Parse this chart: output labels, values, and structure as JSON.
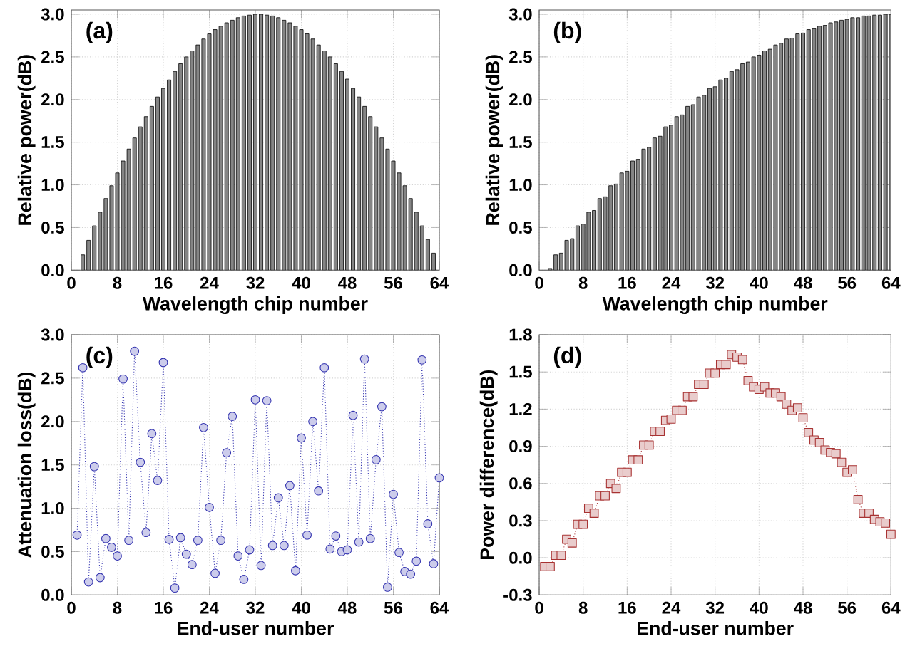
{
  "chart_data": [
    {
      "type": "bar",
      "annotations": [
        "(a)"
      ],
      "xlabel": "Wavelength chip number",
      "ylabel": "Relative power(dB)",
      "color": "#858585",
      "grid": true,
      "x": [
        2,
        3,
        4,
        5,
        6,
        7,
        8,
        9,
        10,
        11,
        12,
        13,
        14,
        15,
        16,
        17,
        18,
        19,
        20,
        21,
        22,
        23,
        24,
        25,
        26,
        27,
        28,
        29,
        30,
        31,
        32,
        33,
        34,
        35,
        36,
        37,
        38,
        39,
        40,
        41,
        42,
        43,
        44,
        45,
        46,
        47,
        48,
        49,
        50,
        51,
        52,
        53,
        54,
        55,
        56,
        57,
        58,
        59,
        60,
        61,
        62,
        63
      ],
      "values": [
        0.18,
        0.35,
        0.52,
        0.68,
        0.84,
        0.99,
        1.14,
        1.28,
        1.42,
        1.55,
        1.68,
        1.8,
        1.92,
        2.03,
        2.13,
        2.23,
        2.33,
        2.42,
        2.5,
        2.57,
        2.64,
        2.71,
        2.77,
        2.82,
        2.86,
        2.9,
        2.93,
        2.96,
        2.98,
        2.99,
        3.0,
        3.0,
        2.99,
        2.98,
        2.96,
        2.93,
        2.9,
        2.86,
        2.82,
        2.77,
        2.71,
        2.64,
        2.57,
        2.5,
        2.42,
        2.33,
        2.24,
        2.13,
        2.03,
        1.92,
        1.8,
        1.68,
        1.55,
        1.42,
        1.28,
        1.14,
        0.99,
        0.84,
        0.68,
        0.52,
        0.36,
        0.2
      ],
      "xlim": [
        0,
        64
      ],
      "xticks": [
        0,
        8,
        16,
        24,
        32,
        40,
        48,
        56,
        64
      ],
      "ylim": [
        0,
        3.05
      ],
      "yticks": [
        {
          "value": 0,
          "label": "0.0"
        },
        {
          "value": 0.5,
          "label": "0.5"
        },
        {
          "value": 1,
          "label": "1.0"
        },
        {
          "value": 1.5,
          "label": "1.5"
        },
        {
          "value": 2,
          "label": "2.0"
        },
        {
          "value": 2.5,
          "label": "2.5"
        },
        {
          "value": 3,
          "label": "3.0"
        }
      ]
    },
    {
      "type": "bar",
      "annotations": [
        "(b)"
      ],
      "xlabel": "Wavelength chip number",
      "ylabel": "Relative power(dB)",
      "color": "#858585",
      "grid": true,
      "x": [
        2,
        3,
        4,
        5,
        6,
        7,
        8,
        9,
        10,
        11,
        12,
        13,
        14,
        15,
        16,
        17,
        18,
        19,
        20,
        21,
        22,
        23,
        24,
        25,
        26,
        27,
        28,
        29,
        30,
        31,
        32,
        33,
        34,
        35,
        36,
        37,
        38,
        39,
        40,
        41,
        42,
        43,
        44,
        45,
        46,
        47,
        48,
        49,
        50,
        51,
        52,
        53,
        54,
        55,
        56,
        57,
        58,
        59,
        60,
        61,
        62,
        63,
        64
      ],
      "values": [
        0.02,
        0.18,
        0.2,
        0.35,
        0.37,
        0.52,
        0.54,
        0.68,
        0.7,
        0.84,
        0.86,
        0.99,
        1.01,
        1.14,
        1.16,
        1.28,
        1.3,
        1.42,
        1.44,
        1.55,
        1.57,
        1.68,
        1.7,
        1.8,
        1.82,
        1.92,
        1.94,
        2.03,
        2.05,
        2.13,
        2.15,
        2.23,
        2.25,
        2.33,
        2.35,
        2.42,
        2.44,
        2.5,
        2.52,
        2.57,
        2.59,
        2.64,
        2.66,
        2.71,
        2.72,
        2.77,
        2.78,
        2.82,
        2.83,
        2.86,
        2.87,
        2.9,
        2.91,
        2.93,
        2.94,
        2.96,
        2.96,
        2.98,
        2.98,
        2.99,
        2.99,
        3.0,
        3.0
      ],
      "xlim": [
        0,
        64
      ],
      "xticks": [
        0,
        8,
        16,
        24,
        32,
        40,
        48,
        56,
        64
      ],
      "ylim": [
        0,
        3.05
      ],
      "yticks": [
        {
          "value": 0,
          "label": "0.0"
        },
        {
          "value": 0.5,
          "label": "0.5"
        },
        {
          "value": 1,
          "label": "1.0"
        },
        {
          "value": 1.5,
          "label": "1.5"
        },
        {
          "value": 2,
          "label": "2.0"
        },
        {
          "value": 2.5,
          "label": "2.5"
        },
        {
          "value": 3,
          "label": "3.0"
        }
      ]
    },
    {
      "type": "line",
      "annotations": [
        "(c)"
      ],
      "xlabel": "End-user number",
      "ylabel": "Attenuation loss(dB)",
      "color": "#3535b0",
      "grid": true,
      "marker": "circle",
      "line_style": "dotted",
      "x": [
        1,
        2,
        3,
        4,
        5,
        6,
        7,
        8,
        9,
        10,
        11,
        12,
        13,
        14,
        15,
        16,
        17,
        18,
        19,
        20,
        21,
        22,
        23,
        24,
        25,
        26,
        27,
        28,
        29,
        30,
        31,
        32,
        33,
        34,
        35,
        36,
        37,
        38,
        39,
        40,
        41,
        42,
        43,
        44,
        45,
        46,
        47,
        48,
        49,
        50,
        51,
        52,
        53,
        54,
        55,
        56,
        57,
        58,
        59,
        60,
        61,
        62,
        63,
        64
      ],
      "values": [
        0.69,
        2.62,
        0.15,
        1.48,
        0.2,
        0.65,
        0.55,
        0.45,
        2.49,
        0.63,
        2.81,
        1.53,
        0.72,
        1.86,
        1.32,
        2.68,
        0.64,
        0.08,
        0.66,
        0.47,
        0.35,
        0.63,
        1.93,
        1.01,
        0.25,
        0.63,
        1.64,
        2.06,
        0.45,
        0.18,
        0.52,
        2.25,
        0.34,
        2.24,
        0.57,
        1.12,
        0.57,
        1.26,
        0.28,
        1.81,
        0.69,
        2.0,
        1.2,
        2.62,
        0.53,
        0.68,
        0.5,
        0.52,
        2.07,
        0.61,
        2.72,
        0.65,
        1.56,
        2.17,
        0.09,
        1.16,
        0.49,
        0.27,
        0.24,
        0.39,
        2.71,
        0.82,
        0.36,
        1.35
      ],
      "xlim": [
        0,
        64
      ],
      "xticks": [
        0,
        8,
        16,
        24,
        32,
        40,
        48,
        56,
        64
      ],
      "ylim": [
        0,
        3
      ],
      "yticks": [
        {
          "value": 0,
          "label": "0.0"
        },
        {
          "value": 0.5,
          "label": "0.5"
        },
        {
          "value": 1,
          "label": "1.0"
        },
        {
          "value": 1.5,
          "label": "1.5"
        },
        {
          "value": 2,
          "label": "2.0"
        },
        {
          "value": 2.5,
          "label": "2.5"
        },
        {
          "value": 3,
          "label": "3.0"
        }
      ]
    },
    {
      "type": "line",
      "annotations": [
        "(d)"
      ],
      "xlabel": "End-user number",
      "ylabel": "Power difference(dB)",
      "color": "#a83232",
      "grid": true,
      "marker": "square",
      "line_style": "dotted",
      "x": [
        1,
        2,
        3,
        4,
        5,
        6,
        7,
        8,
        9,
        10,
        11,
        12,
        13,
        14,
        15,
        16,
        17,
        18,
        19,
        20,
        21,
        22,
        23,
        24,
        25,
        26,
        27,
        28,
        29,
        30,
        31,
        32,
        33,
        34,
        35,
        36,
        37,
        38,
        39,
        40,
        41,
        42,
        43,
        44,
        45,
        46,
        47,
        48,
        49,
        50,
        51,
        52,
        53,
        54,
        55,
        56,
        57,
        58,
        59,
        60,
        61,
        62,
        63,
        64
      ],
      "values": [
        -0.07,
        -0.07,
        0.02,
        0.02,
        0.15,
        0.12,
        0.27,
        0.27,
        0.4,
        0.36,
        0.5,
        0.5,
        0.6,
        0.56,
        0.69,
        0.69,
        0.79,
        0.79,
        0.91,
        0.91,
        1.02,
        1.02,
        1.11,
        1.12,
        1.19,
        1.19,
        1.3,
        1.3,
        1.4,
        1.4,
        1.49,
        1.49,
        1.56,
        1.56,
        1.64,
        1.62,
        1.6,
        1.43,
        1.38,
        1.36,
        1.38,
        1.33,
        1.33,
        1.3,
        1.24,
        1.19,
        1.21,
        1.13,
        1.01,
        0.95,
        0.93,
        0.87,
        0.85,
        0.84,
        0.77,
        0.69,
        0.71,
        0.47,
        0.36,
        0.36,
        0.31,
        0.29,
        0.28,
        0.19
      ],
      "xlim": [
        0,
        64
      ],
      "xticks": [
        0,
        8,
        16,
        24,
        32,
        40,
        48,
        56,
        64
      ],
      "ylim": [
        -0.3,
        1.8
      ],
      "yticks": [
        {
          "value": -0.3,
          "label": "-0.3"
        },
        {
          "value": 0,
          "label": "0.0"
        },
        {
          "value": 0.3,
          "label": "0.3"
        },
        {
          "value": 0.6,
          "label": "0.6"
        },
        {
          "value": 0.9,
          "label": "0.9"
        },
        {
          "value": 1.2,
          "label": "1.2"
        },
        {
          "value": 1.5,
          "label": "1.5"
        },
        {
          "value": 1.8,
          "label": "1.8"
        }
      ]
    }
  ]
}
